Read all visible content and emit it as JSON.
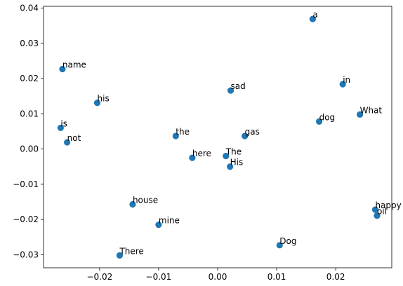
{
  "chart_data": {
    "type": "scatter",
    "title": "",
    "xlabel": "",
    "ylabel": "",
    "xlim": [
      -0.0295,
      0.0295
    ],
    "ylim": [
      -0.0337,
      0.0405
    ],
    "grid": false,
    "point_color": "#1f77b4",
    "x_ticks": [
      {
        "value": -0.02,
        "label": "−0.02"
      },
      {
        "value": -0.01,
        "label": "−0.01"
      },
      {
        "value": 0.0,
        "label": "0.00"
      },
      {
        "value": 0.01,
        "label": "0.01"
      },
      {
        "value": 0.02,
        "label": "0.02"
      }
    ],
    "y_ticks": [
      {
        "value": -0.03,
        "label": "−0.03"
      },
      {
        "value": -0.02,
        "label": "−0.02"
      },
      {
        "value": -0.01,
        "label": "−0.01"
      },
      {
        "value": 0.0,
        "label": "0.00"
      },
      {
        "value": 0.01,
        "label": "0.01"
      },
      {
        "value": 0.02,
        "label": "0.02"
      },
      {
        "value": 0.03,
        "label": "0.03"
      },
      {
        "value": 0.04,
        "label": "0.04"
      }
    ],
    "points": [
      {
        "label": "a",
        "x": 0.0161,
        "y": 0.0369
      },
      {
        "label": "name",
        "x": -0.0263,
        "y": 0.0227
      },
      {
        "label": "in",
        "x": 0.0212,
        "y": 0.0184
      },
      {
        "label": "sad",
        "x": 0.0022,
        "y": 0.0166
      },
      {
        "label": "his",
        "x": -0.0204,
        "y": 0.0131
      },
      {
        "label": "What",
        "x": 0.0241,
        "y": 0.0098
      },
      {
        "label": "dog",
        "x": 0.0172,
        "y": 0.0078
      },
      {
        "label": "is",
        "x": -0.0266,
        "y": 0.006
      },
      {
        "label": "the",
        "x": -0.0071,
        "y": 0.0037
      },
      {
        "label": "gas",
        "x": 0.0046,
        "y": 0.0037
      },
      {
        "label": "not",
        "x": -0.0255,
        "y": 0.0019
      },
      {
        "label": "here",
        "x": -0.0043,
        "y": -0.0025
      },
      {
        "label": "The",
        "x": 0.0014,
        "y": -0.002
      },
      {
        "label": "His",
        "x": 0.0021,
        "y": -0.005
      },
      {
        "label": "house",
        "x": -0.0144,
        "y": -0.0157
      },
      {
        "label": "mine",
        "x": -0.01,
        "y": -0.0215
      },
      {
        "label": "happy",
        "x": 0.0267,
        "y": -0.0172
      },
      {
        "label": "oil",
        "x": 0.027,
        "y": -0.0189
      },
      {
        "label": "Dog",
        "x": 0.0105,
        "y": -0.0273
      },
      {
        "label": "There",
        "x": -0.0166,
        "y": -0.0302
      }
    ]
  }
}
